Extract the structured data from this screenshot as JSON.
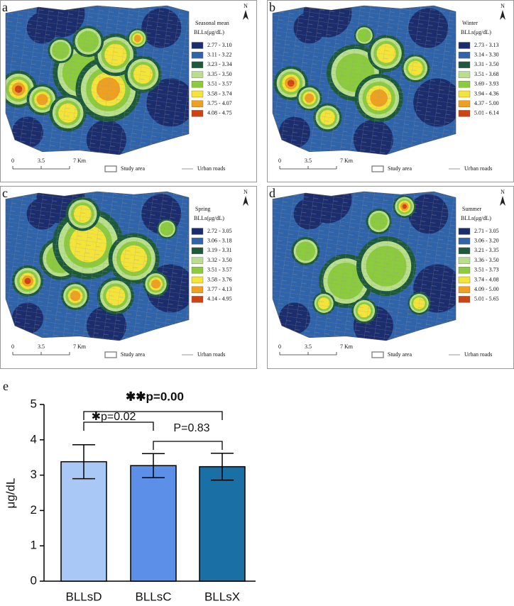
{
  "maps": [
    {
      "label": "a",
      "title": "Seasonal mean",
      "unit": "BLLs(μg/dL)",
      "north": "N",
      "classes": [
        {
          "range": "2.77 - 3.10",
          "color": "#1c2d6e"
        },
        {
          "range": "3.11 - 3.22",
          "color": "#2f63aa"
        },
        {
          "range": "3.23 - 3.34",
          "color": "#1d5a3c"
        },
        {
          "range": "3.35 - 3.50",
          "color": "#b9df8c"
        },
        {
          "range": "3.51 - 3.57",
          "color": "#8bcb3d"
        },
        {
          "range": "3.58 - 3.74",
          "color": "#f4e43a"
        },
        {
          "range": "3.75 - 4.07",
          "color": "#eea021"
        },
        {
          "range": "4.08 - 4.75",
          "color": "#cf4212"
        }
      ],
      "scale": [
        "0",
        "3.5",
        "7 Km"
      ],
      "study_area": "Study area",
      "roads": "Urban roads"
    },
    {
      "label": "b",
      "title": "Winter",
      "unit": "BLLs(μg/dL)",
      "north": "N",
      "classes": [
        {
          "range": "2.73 - 3.13",
          "color": "#1c2d6e"
        },
        {
          "range": "3.14 - 3.30",
          "color": "#2f63aa"
        },
        {
          "range": "3.31 - 3.50",
          "color": "#1d5a3c"
        },
        {
          "range": "3.51 - 3.68",
          "color": "#b9df8c"
        },
        {
          "range": "3.69 - 3.93",
          "color": "#8bcb3d"
        },
        {
          "range": "3.94 - 4.36",
          "color": "#f4e43a"
        },
        {
          "range": "4.37 - 5.00",
          "color": "#eea021"
        },
        {
          "range": "5.01 - 6.14",
          "color": "#cf4212"
        }
      ],
      "scale": [
        "0",
        "3.5",
        "7 Km"
      ],
      "study_area": "Study area",
      "roads": "Urban roads"
    },
    {
      "label": "c",
      "title": "Spring",
      "unit": "BLLs(μg/dL)",
      "north": "N",
      "classes": [
        {
          "range": "2.72 - 3.05",
          "color": "#1c2d6e"
        },
        {
          "range": "3.06 - 3.18",
          "color": "#2f63aa"
        },
        {
          "range": "3.19 - 3.31",
          "color": "#1d5a3c"
        },
        {
          "range": "3.32 - 3.50",
          "color": "#b9df8c"
        },
        {
          "range": "3.51 - 3.57",
          "color": "#8bcb3d"
        },
        {
          "range": "3.58 - 3.76",
          "color": "#f4e43a"
        },
        {
          "range": "3.77 - 4.13",
          "color": "#eea021"
        },
        {
          "range": "4.14 - 4.95",
          "color": "#cf4212"
        }
      ],
      "scale": [
        "0",
        "3.5",
        "7 Km"
      ],
      "study_area": "Study area",
      "roads": "Urban roads"
    },
    {
      "label": "d",
      "title": "Summer",
      "unit": "BLLs(μg/dL)",
      "north": "N",
      "classes": [
        {
          "range": "2.71 - 3.05",
          "color": "#1c2d6e"
        },
        {
          "range": "3.06 - 3.20",
          "color": "#2f63aa"
        },
        {
          "range": "3.21 - 3.35",
          "color": "#1d5a3c"
        },
        {
          "range": "3.36 - 3.50",
          "color": "#b9df8c"
        },
        {
          "range": "3.51 - 3.73",
          "color": "#8bcb3d"
        },
        {
          "range": "3.74 - 4.08",
          "color": "#f4e43a"
        },
        {
          "range": "4.09 - 5.00",
          "color": "#eea021"
        },
        {
          "range": "5.01 - 5.65",
          "color": "#cf4212"
        }
      ],
      "scale": [
        "0",
        "3.5",
        "7 Km"
      ],
      "study_area": "Study area",
      "roads": "Urban roads"
    }
  ],
  "chart_data": {
    "type": "bar",
    "label": "e",
    "ylabel": "μg/dL",
    "categories": [
      "BLLsD",
      "BLLsC",
      "BLLsX"
    ],
    "values": [
      3.38,
      3.27,
      3.24
    ],
    "errors": [
      0.48,
      0.34,
      0.38
    ],
    "colors": [
      "#a9c8f5",
      "#5b8fe8",
      "#1a6fa5"
    ],
    "ylim": [
      0,
      5
    ],
    "yticks": [
      0,
      1,
      2,
      3,
      4,
      5
    ],
    "annotations": [
      "✱✱p=0.00",
      "✱p=0.02",
      "P=0.83"
    ]
  }
}
